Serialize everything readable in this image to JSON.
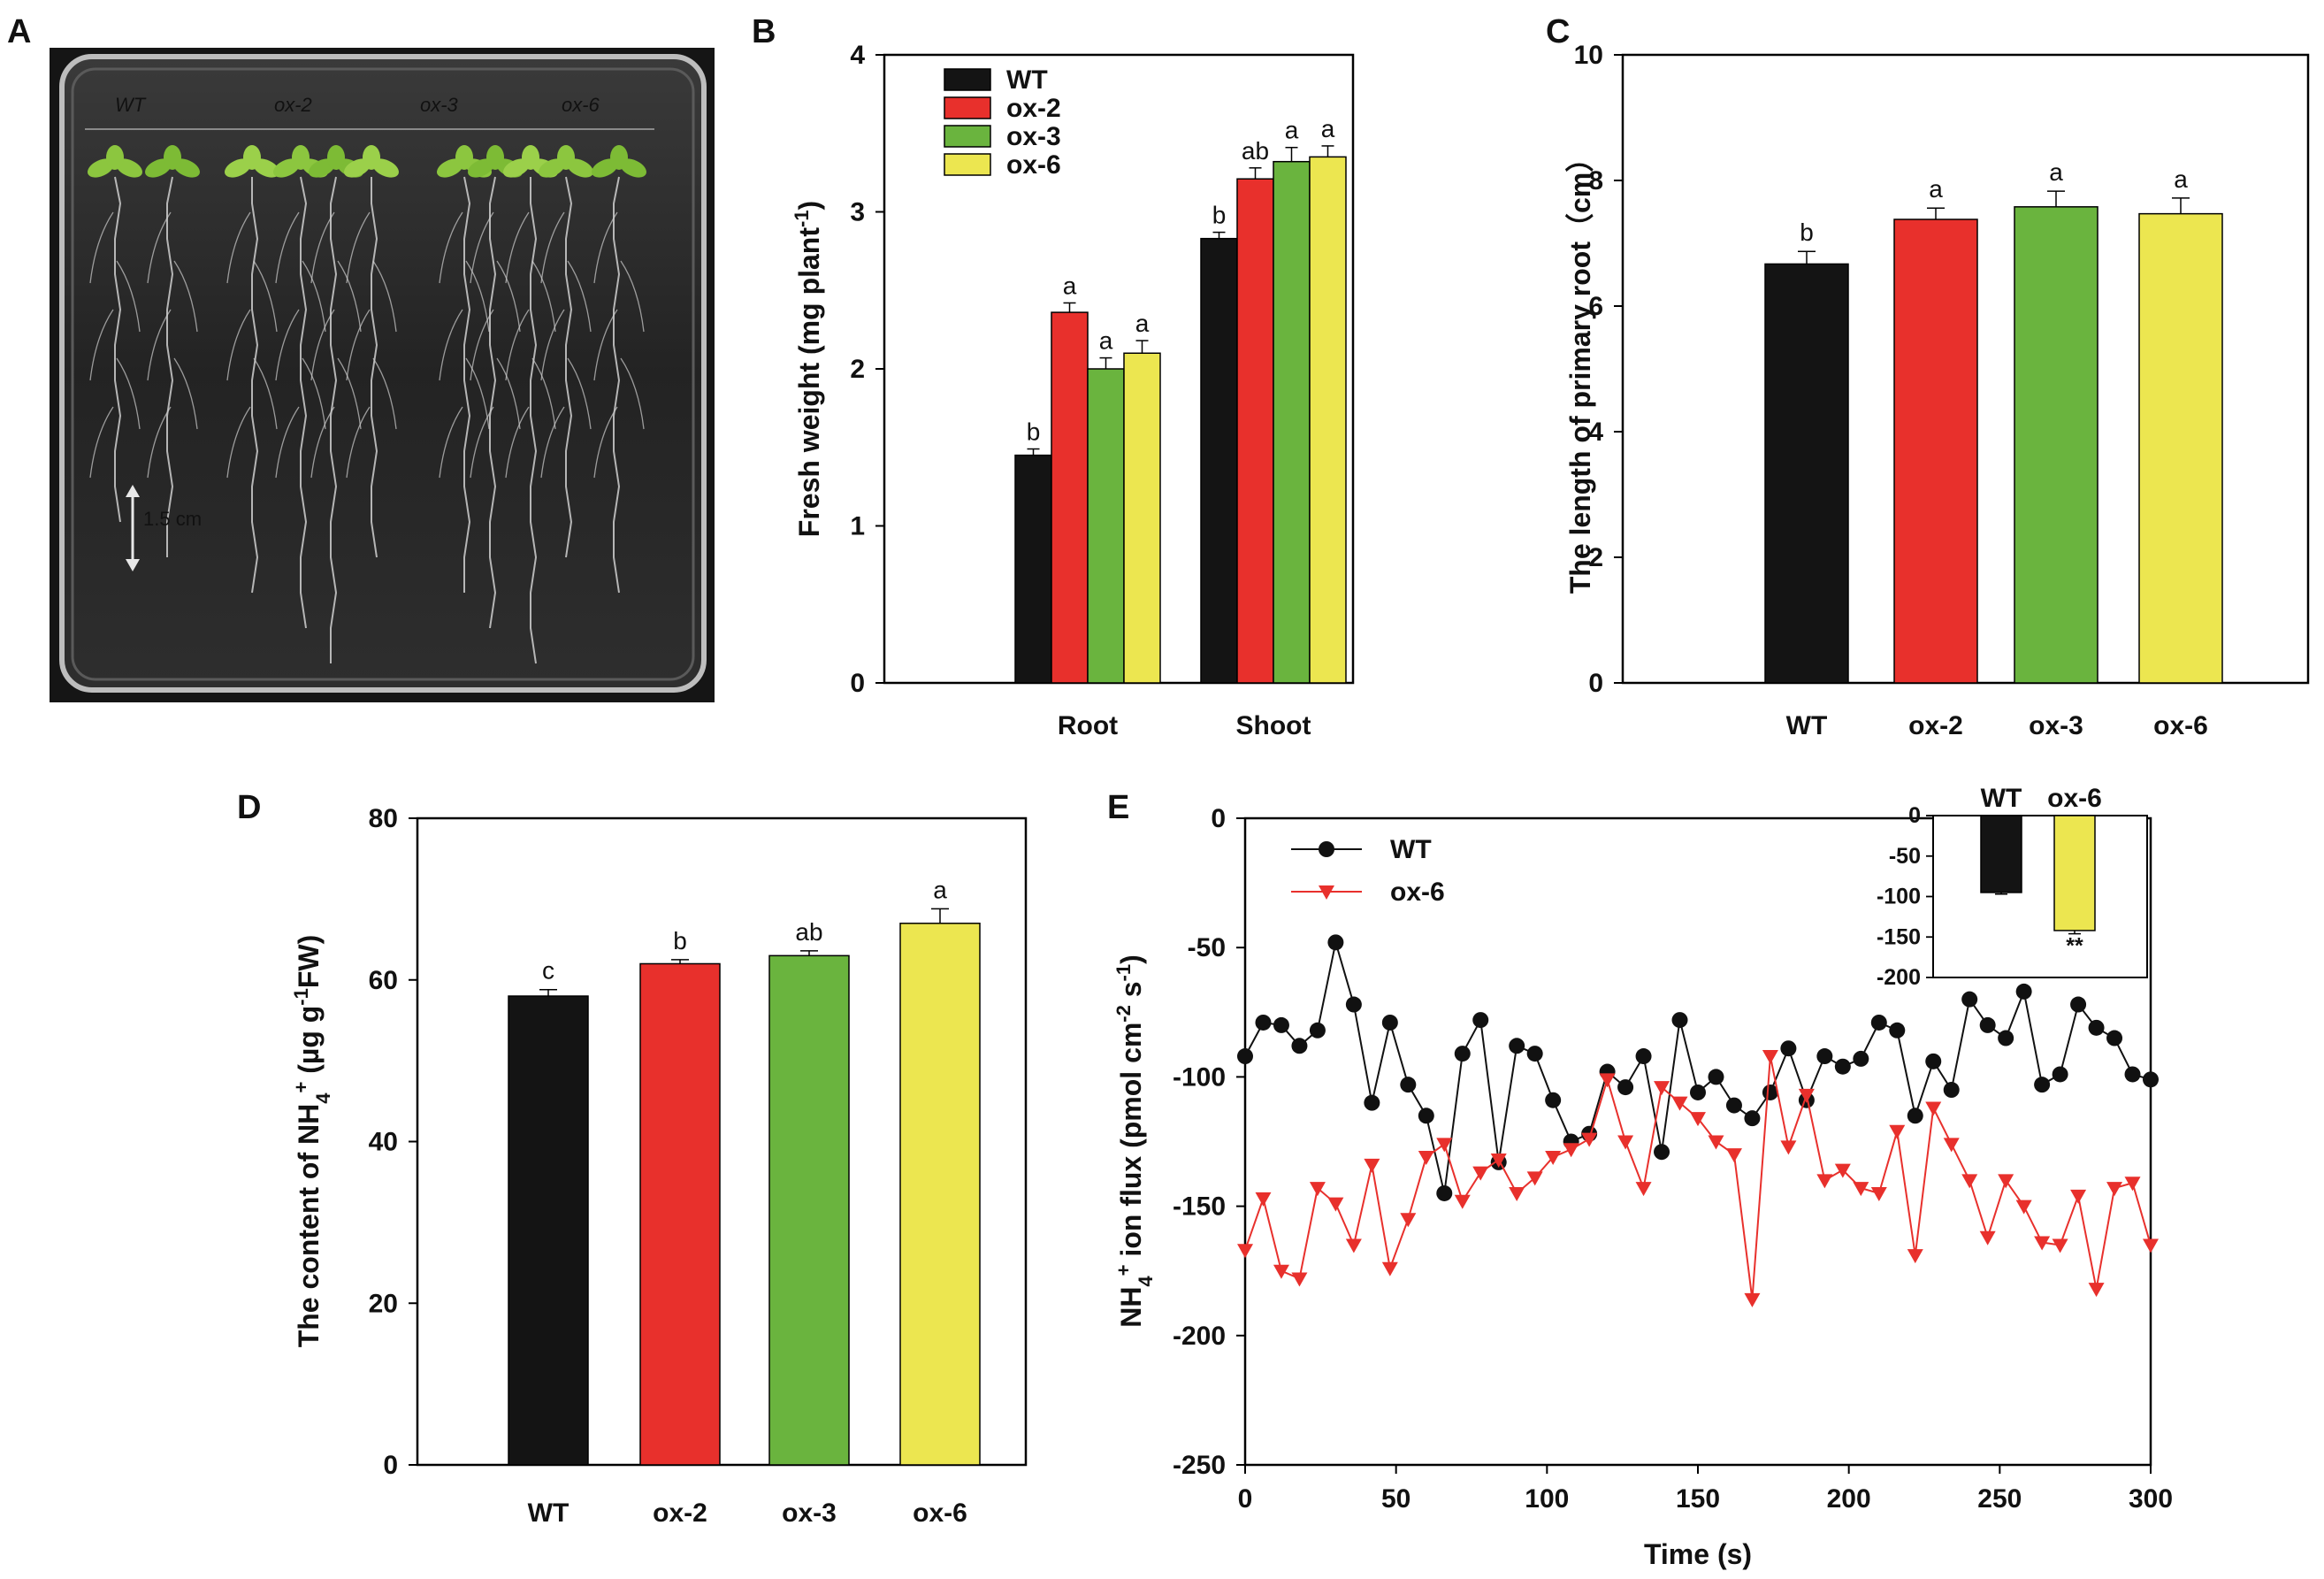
{
  "panels": {
    "A": {
      "label": "A",
      "plate_labels": [
        "WT",
        "ox-2",
        "ox-3",
        "ox-6"
      ],
      "scale_bar": "1.5 cm"
    }
  },
  "colors": {
    "WT": "#141414",
    "ox-2": "#e8302c",
    "ox-3": "#6ab43e",
    "ox-6": "#ece650",
    "wt_line": "#111111",
    "ox6_line": "#e8302c"
  },
  "chart_data": [
    {
      "panel": "B",
      "type": "bar",
      "title": "",
      "categories": [
        "Root",
        "Shoot"
      ],
      "series": [
        {
          "name": "WT",
          "values": [
            1.45,
            2.83
          ],
          "errors": [
            0.04,
            0.04
          ],
          "letters": [
            "b",
            "b"
          ]
        },
        {
          "name": "ox-2",
          "values": [
            2.36,
            3.21
          ],
          "errors": [
            0.06,
            0.07
          ],
          "letters": [
            "a",
            "ab"
          ]
        },
        {
          "name": "ox-3",
          "values": [
            2.0,
            3.32
          ],
          "errors": [
            0.07,
            0.09
          ],
          "letters": [
            "a",
            "a"
          ]
        },
        {
          "name": "ox-6",
          "values": [
            2.1,
            3.35
          ],
          "errors": [
            0.08,
            0.07
          ],
          "letters": [
            "a",
            "a"
          ]
        }
      ],
      "xlabel": "",
      "ylabel": "Fresh weight (mg plant",
      "ylabel_sup": "-1",
      "ylabel_end": ")",
      "ylim": [
        0,
        4
      ],
      "yticks": [
        "0",
        "1",
        "2",
        "3",
        "4"
      ],
      "legend_position": "top-left"
    },
    {
      "panel": "C",
      "type": "bar",
      "title": "",
      "categories": [
        "WT",
        "ox-2",
        "ox-3",
        "ox-6"
      ],
      "values": [
        6.67,
        7.38,
        7.58,
        7.47
      ],
      "errors": [
        0.2,
        0.18,
        0.25,
        0.25
      ],
      "letters": [
        "b",
        "a",
        "a",
        "a"
      ],
      "xlabel": "",
      "ylabel": "The length of primary root（cm）",
      "ylim": [
        0,
        10
      ],
      "yticks": [
        "0",
        "2",
        "4",
        "6",
        "8",
        "10"
      ]
    },
    {
      "panel": "D",
      "type": "bar",
      "title": "",
      "categories": [
        "WT",
        "ox-2",
        "ox-3",
        "ox-6"
      ],
      "values": [
        58.0,
        62.0,
        63.0,
        67.0
      ],
      "errors": [
        0.8,
        0.5,
        0.6,
        1.8
      ],
      "letters": [
        "c",
        "b",
        "ab",
        "a"
      ],
      "xlabel": "",
      "ylabel": "The content of NH",
      "ylabel_sub": "4",
      "ylabel_sup": "+",
      "ylabel_end": " (µg  g",
      "ylabel_sup2": "-1",
      "ylabel_end2": "FW)",
      "ylim": [
        0,
        80
      ],
      "yticks": [
        "0",
        "20",
        "40",
        "60",
        "80"
      ]
    },
    {
      "panel": "E",
      "type": "line",
      "title": "",
      "xlabel": "Time (s)",
      "ylabel": "NH",
      "ylabel_sub": "4",
      "ylabel_sup": "+",
      "ylabel_end": " ion flux (pmol cm",
      "ylabel_sup2": "-2",
      "ylabel_mid": " s",
      "ylabel_sup3": "-1",
      "ylabel_end2": ")",
      "xlim": [
        0,
        300
      ],
      "ylim": [
        -250,
        0
      ],
      "xticks": [
        "0",
        "50",
        "100",
        "150",
        "200",
        "250",
        "300"
      ],
      "yticks": [
        "0",
        "-50",
        "-100",
        "-150",
        "-200",
        "-250"
      ],
      "legend_position": "top-left",
      "series": [
        {
          "name": "WT",
          "marker": "circle",
          "x": [
            0,
            6,
            12,
            18,
            24,
            30,
            36,
            42,
            48,
            54,
            60,
            66,
            72,
            78,
            84,
            90,
            96,
            102,
            108,
            114,
            120,
            126,
            132,
            138,
            144,
            150,
            156,
            162,
            168,
            174,
            180,
            186,
            192,
            198,
            204,
            210,
            216,
            222,
            228,
            234,
            240,
            246,
            252,
            258,
            264,
            270,
            276,
            282,
            288,
            294,
            300
          ],
          "y": [
            -92,
            -79,
            -80,
            -88,
            -82,
            -48,
            -72,
            -110,
            -79,
            -103,
            -115,
            -145,
            -91,
            -78,
            -133,
            -88,
            -91,
            -109,
            -125,
            -122,
            -98,
            -104,
            -92,
            -129,
            -78,
            -106,
            -100,
            -111,
            -116,
            -106,
            -89,
            -109,
            -92,
            -96,
            -93,
            -79,
            -82,
            -115,
            -94,
            -105,
            -70,
            -80,
            -85,
            -67,
            -103,
            -99,
            -72,
            -81,
            -85,
            -99,
            -101
          ]
        },
        {
          "name": "ox-6",
          "marker": "triangle-down",
          "x": [
            0,
            6,
            12,
            18,
            24,
            30,
            36,
            42,
            48,
            54,
            60,
            66,
            72,
            78,
            84,
            90,
            96,
            102,
            108,
            114,
            120,
            126,
            132,
            138,
            144,
            150,
            156,
            162,
            168,
            174,
            180,
            186,
            192,
            198,
            204,
            210,
            216,
            222,
            228,
            234,
            240,
            246,
            252,
            258,
            264,
            270,
            276,
            282,
            288,
            294,
            300
          ],
          "y": [
            -167,
            -147,
            -175,
            -178,
            -143,
            -149,
            -165,
            -134,
            -174,
            -155,
            -131,
            -126,
            -148,
            -137,
            -132,
            -145,
            -139,
            -131,
            -128,
            -124,
            -101,
            -125,
            -143,
            -104,
            -110,
            -116,
            -125,
            -130,
            -186,
            -92,
            -127,
            -107,
            -140,
            -136,
            -143,
            -145,
            -121,
            -169,
            -112,
            -126,
            -140,
            -162,
            -140,
            -150,
            -164,
            -165,
            -146,
            -182,
            -143,
            -141,
            -165
          ]
        }
      ],
      "inset": {
        "type": "bar",
        "categories": [
          "WT",
          "ox-6"
        ],
        "values": [
          -95,
          -142
        ],
        "errors": [
          2,
          4
        ],
        "significance": [
          "",
          "**"
        ],
        "ylim": [
          -200,
          0
        ],
        "yticks": [
          "0",
          "-50",
          "-100",
          "-150",
          "-200"
        ]
      }
    }
  ],
  "labels": {
    "B": "B",
    "C": "C",
    "D": "D",
    "E": "E"
  }
}
